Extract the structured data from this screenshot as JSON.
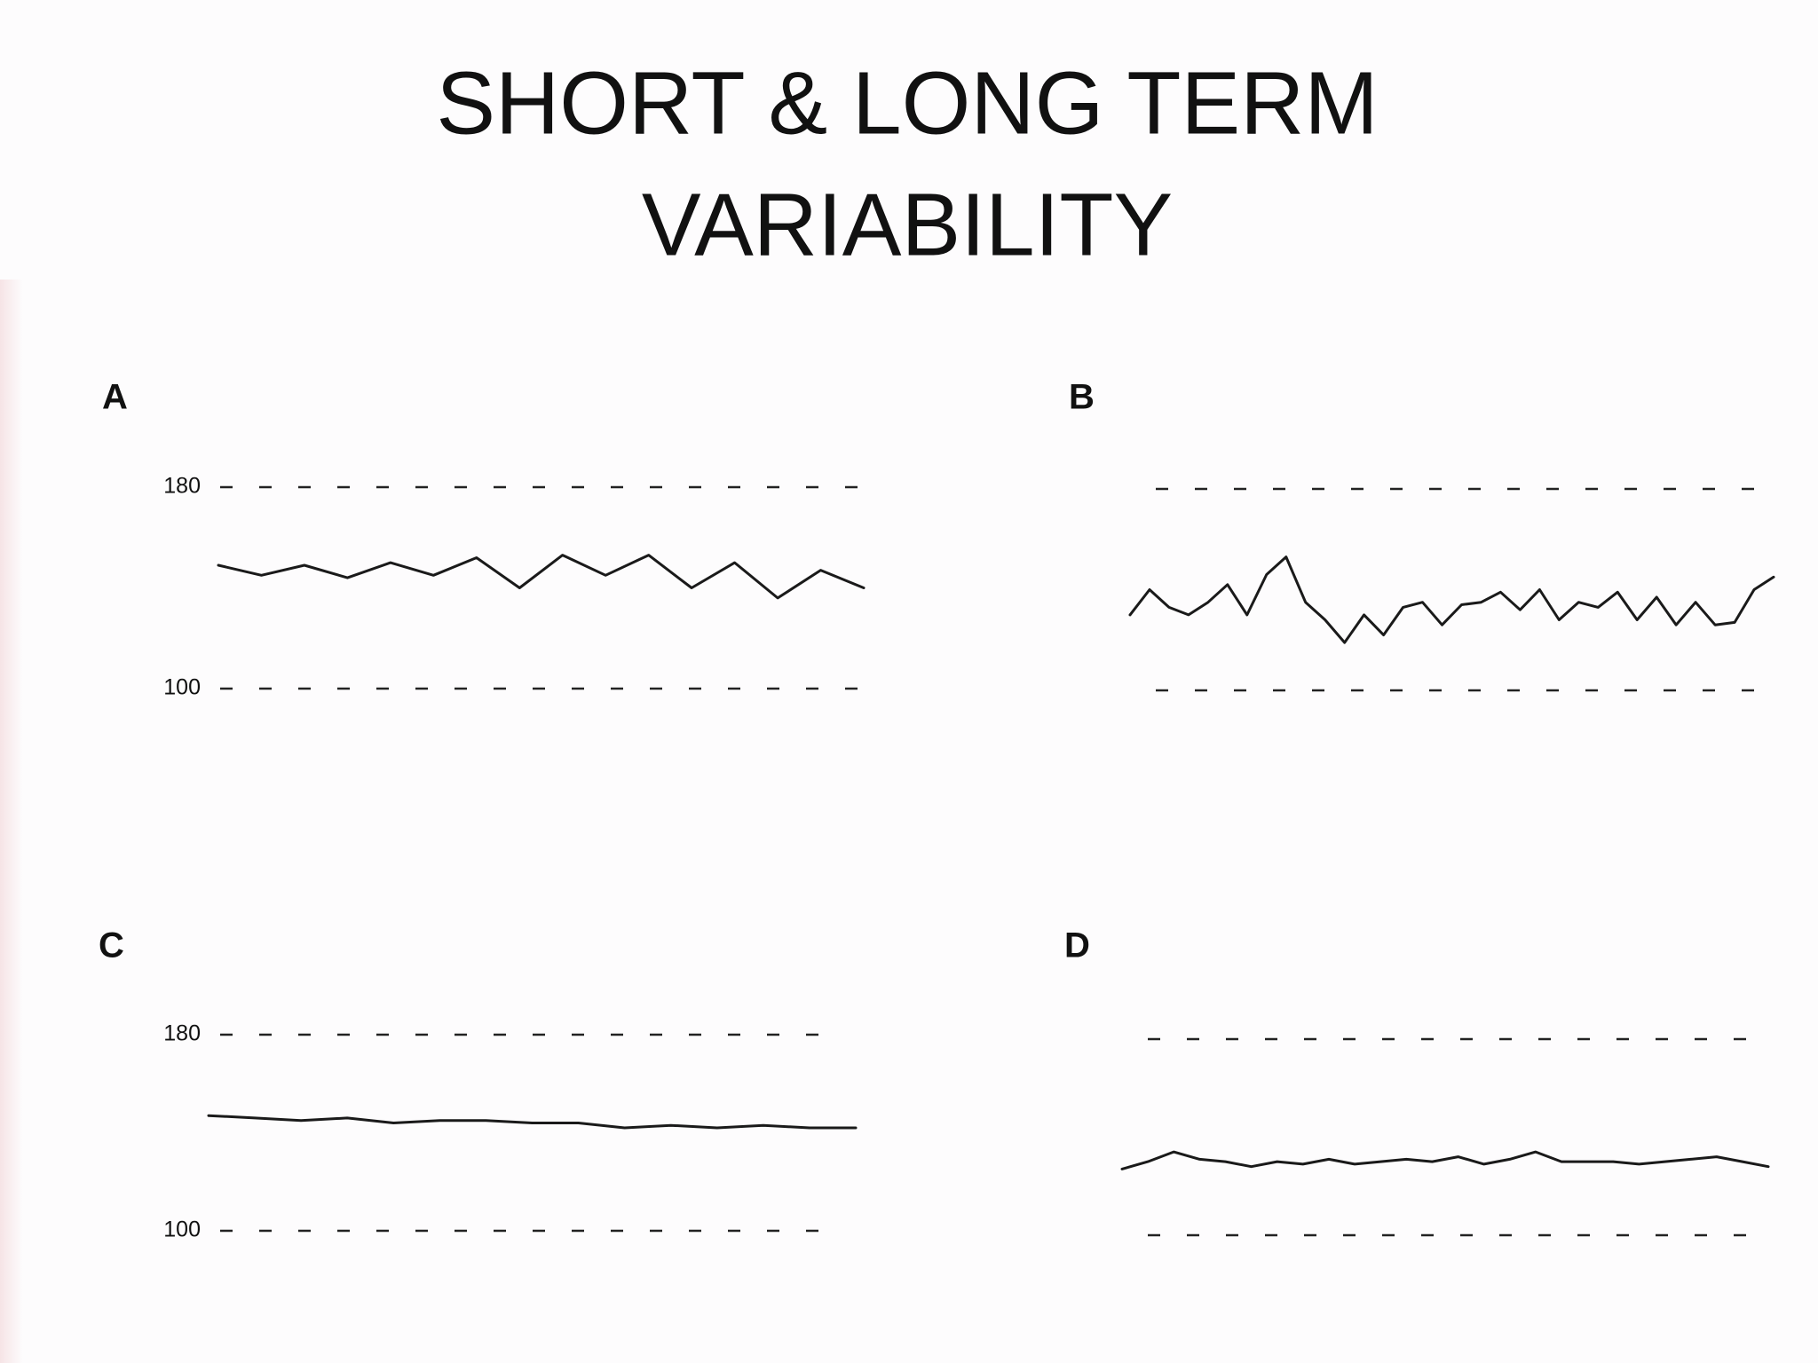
{
  "title": [
    "SHORT & LONG TERM",
    "VARIABILITY"
  ],
  "chart_data": [
    {
      "type": "line",
      "title": "A",
      "ylim": [
        100,
        180
      ],
      "yticks": [
        100,
        180
      ],
      "color": "#1a1a1a",
      "values": [
        149,
        145,
        149,
        144,
        150,
        145,
        152,
        140,
        153,
        145,
        153,
        140,
        150,
        136,
        147,
        140
      ]
    },
    {
      "type": "line",
      "title": "B",
      "ylim": [
        100,
        180
      ],
      "color": "#1a1a1a",
      "values": [
        130,
        140,
        133,
        130,
        135,
        142,
        130,
        146,
        153,
        135,
        128,
        119,
        130,
        122,
        133,
        135,
        126,
        134,
        135,
        139,
        132,
        140,
        128,
        135,
        133,
        139,
        128,
        137,
        126,
        135,
        126,
        127,
        140,
        145
      ]
    },
    {
      "type": "line",
      "title": "C",
      "ylim": [
        100,
        180
      ],
      "yticks": [
        100,
        180
      ],
      "color": "#1a1a1a",
      "values": [
        147,
        146,
        145,
        146,
        144,
        145,
        145,
        144,
        144,
        142,
        143,
        142,
        143,
        142,
        142
      ]
    },
    {
      "type": "line",
      "title": "D",
      "ylim": [
        100,
        180
      ],
      "color": "#1a1a1a",
      "values": [
        127,
        130,
        134,
        131,
        130,
        128,
        130,
        129,
        131,
        129,
        130,
        131,
        130,
        132,
        129,
        131,
        134,
        130,
        130,
        130,
        129,
        130,
        131,
        132,
        130,
        128
      ]
    }
  ]
}
